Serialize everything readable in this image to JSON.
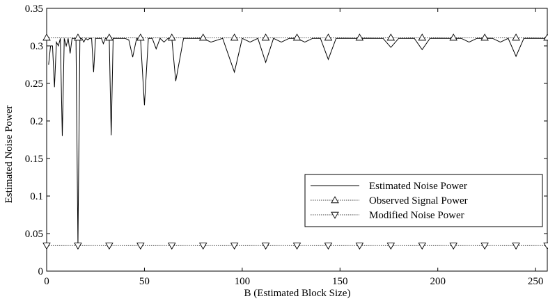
{
  "chart_data": {
    "type": "line",
    "xlabel": "B (Estimated Block Size)",
    "ylabel": "Estimated Noise Power",
    "xlim": [
      0,
      256
    ],
    "ylim": [
      0,
      0.35
    ],
    "xticks": [
      0,
      50,
      100,
      150,
      200,
      250
    ],
    "yticks": [
      0,
      0.05,
      0.1,
      0.15,
      0.2,
      0.25,
      0.3,
      0.35
    ],
    "xtick_labels": [
      "0",
      "50",
      "100",
      "150",
      "200",
      "250"
    ],
    "ytick_labels": [
      "0",
      "0.05",
      "0.1",
      "0.15",
      "0.2",
      "0.25",
      "0.3",
      "0.35"
    ],
    "grid": false,
    "legend_position": "lower-right",
    "series": [
      {
        "name": "Estimated Noise Power",
        "style": "solid",
        "x": [
          1,
          2,
          3,
          4,
          5,
          6,
          7,
          8,
          9,
          10,
          11,
          12,
          13,
          14,
          15,
          16,
          17,
          18,
          19,
          20,
          21,
          22,
          23,
          24,
          25,
          26,
          27,
          28,
          29,
          30,
          31,
          32,
          33,
          34,
          35,
          36,
          40,
          42,
          44,
          46,
          48,
          50,
          52,
          54,
          56,
          58,
          60,
          62,
          64,
          66,
          70,
          74,
          78,
          80,
          84,
          90,
          96,
          100,
          104,
          108,
          112,
          116,
          120,
          124,
          128,
          132,
          136,
          140,
          144,
          148,
          152,
          156,
          160,
          164,
          168,
          172,
          176,
          180,
          184,
          188,
          192,
          196,
          200,
          204,
          208,
          212,
          216,
          220,
          224,
          228,
          232,
          236,
          240,
          244,
          248,
          252,
          256
        ],
        "values": [
          0.275,
          0.3,
          0.3,
          0.245,
          0.305,
          0.3,
          0.31,
          0.18,
          0.31,
          0.3,
          0.31,
          0.29,
          0.31,
          0.31,
          0.31,
          0.034,
          0.31,
          0.31,
          0.305,
          0.31,
          0.308,
          0.31,
          0.31,
          0.265,
          0.31,
          0.31,
          0.31,
          0.31,
          0.303,
          0.31,
          0.31,
          0.31,
          0.181,
          0.31,
          0.31,
          0.31,
          0.31,
          0.308,
          0.285,
          0.31,
          0.31,
          0.221,
          0.31,
          0.31,
          0.296,
          0.31,
          0.305,
          0.31,
          0.31,
          0.253,
          0.31,
          0.31,
          0.31,
          0.31,
          0.305,
          0.31,
          0.265,
          0.31,
          0.305,
          0.31,
          0.278,
          0.31,
          0.305,
          0.31,
          0.31,
          0.305,
          0.31,
          0.31,
          0.282,
          0.31,
          0.31,
          0.31,
          0.31,
          0.31,
          0.31,
          0.31,
          0.298,
          0.31,
          0.31,
          0.31,
          0.295,
          0.31,
          0.31,
          0.31,
          0.31,
          0.31,
          0.305,
          0.31,
          0.31,
          0.31,
          0.305,
          0.31,
          0.286,
          0.31,
          0.31,
          0.31,
          0.31
        ]
      },
      {
        "name": "Observed Signal Power",
        "style": "dotted",
        "marker": "triangle-up",
        "x": [
          0,
          16,
          32,
          48,
          64,
          80,
          96,
          112,
          128,
          144,
          160,
          176,
          192,
          208,
          224,
          240,
          256
        ],
        "values": [
          0.311,
          0.311,
          0.311,
          0.311,
          0.311,
          0.311,
          0.311,
          0.311,
          0.311,
          0.311,
          0.311,
          0.311,
          0.311,
          0.311,
          0.311,
          0.311,
          0.311
        ]
      },
      {
        "name": "Modified Noise Power",
        "style": "dotted",
        "marker": "triangle-down",
        "x": [
          0,
          16,
          32,
          48,
          64,
          80,
          96,
          112,
          128,
          144,
          160,
          176,
          192,
          208,
          224,
          240,
          256
        ],
        "values": [
          0.034,
          0.034,
          0.034,
          0.034,
          0.034,
          0.034,
          0.034,
          0.034,
          0.034,
          0.034,
          0.034,
          0.034,
          0.034,
          0.034,
          0.034,
          0.034,
          0.034
        ]
      }
    ]
  }
}
